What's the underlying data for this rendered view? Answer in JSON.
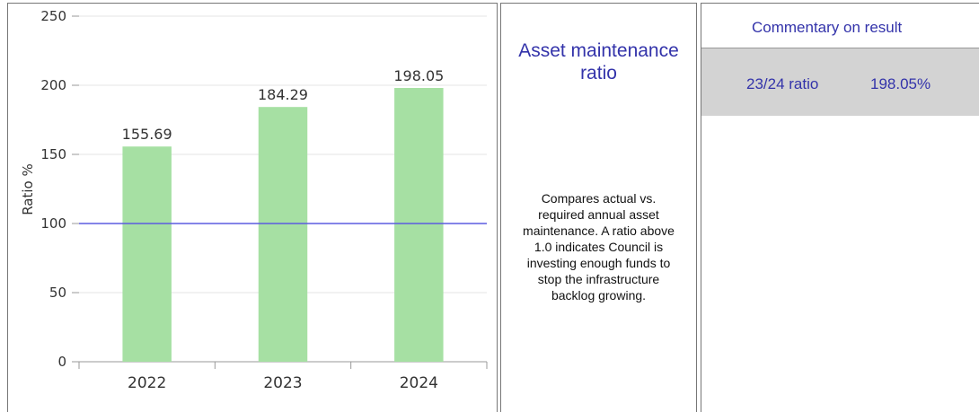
{
  "chart_data": {
    "type": "bar",
    "ylabel": "Ratio %",
    "categories": [
      "2022",
      "2023",
      "2024"
    ],
    "values": [
      155.69,
      184.29,
      198.05
    ],
    "color": "#a6e0a3",
    "ylim": [
      0,
      250
    ],
    "yticks": [
      0,
      50,
      100,
      150,
      200,
      250
    ],
    "grid": true,
    "reference_line": {
      "value": 100,
      "color": "#5b5be0"
    }
  },
  "info": {
    "title": "Asset maintenance ratio",
    "description": "Compares actual vs. required annual asset maintenance. A ratio above 1.0 indicates Council is investing enough funds to stop the infrastructure backlog growing."
  },
  "commentary": {
    "header": "Commentary on result",
    "label": "23/24 ratio",
    "value": "198.05%"
  }
}
